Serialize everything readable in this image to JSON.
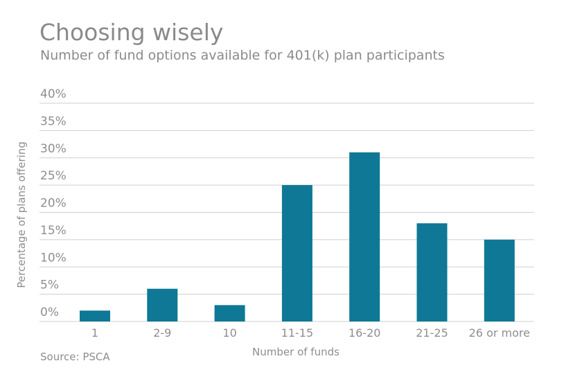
{
  "chart_data": {
    "type": "bar",
    "title": "Choosing wisely",
    "subtitle": "Number of fund options available for 401(k) plan participants",
    "xlabel": "Number of funds",
    "ylabel": "Percentage of plans offering",
    "categories": [
      "1",
      "2-9",
      "10",
      "11-15",
      "16-20",
      "21-25",
      "26 or more"
    ],
    "values": [
      2,
      6,
      3,
      25,
      31,
      18,
      15
    ],
    "ylim": [
      0,
      40
    ],
    "yticks": [
      0,
      5,
      10,
      15,
      20,
      25,
      30,
      35,
      40
    ],
    "ytick_labels": [
      "0%",
      "5%",
      "10%",
      "15%",
      "20%",
      "25%",
      "30%",
      "35%",
      "40%"
    ],
    "grid": true,
    "bar_color": "#0e7896",
    "source": "Source: PSCA"
  }
}
